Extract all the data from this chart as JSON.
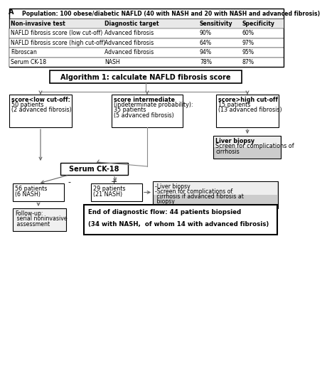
{
  "bg_color": "#ffffff",
  "table": {
    "title": "Population: 100 obese/diabetic NAFLD (40 with NASH and 20 with NASH and advanced fibrosis)",
    "headers": [
      "Non-invasive test",
      "Diagnostic target",
      "Sensitivity",
      "Specificity"
    ],
    "rows": [
      [
        "NAFLD fibrosis score (low cut-off)",
        "Advanced fibrosis",
        "90%",
        "60%"
      ],
      [
        "NAFLD fibrosis score (high cut-off)",
        "Advanced fibrosis",
        "64%",
        "97%"
      ],
      [
        "Fibroscan",
        "Advanced fibrosis",
        "94%",
        "95%"
      ],
      [
        "Serum CK-18",
        "NASH",
        "78%",
        "87%"
      ]
    ]
  },
  "algo_box": "Algorithm 1: calculate NAFLD fibrosis score",
  "low_box_lines": [
    "score<low cut-off:",
    "50 patients",
    "(2 advanced fibrosis)"
  ],
  "low_box_bold": [
    true,
    false,
    false
  ],
  "mid_box_lines": [
    "score intermediate",
    "(indeterminate probability):",
    "35 patients",
    "(5 advanced fibrosis)"
  ],
  "mid_box_bold": [
    true,
    false,
    false,
    false
  ],
  "high_box_lines": [
    "score>high cut-off",
    "15 patients",
    "(13 advanced fibrosis)"
  ],
  "high_box_bold": [
    true,
    false,
    false
  ],
  "liver_biopsy1_lines": [
    "Liver biopsy",
    "Screen for complications of",
    "cirrhosis"
  ],
  "liver_biopsy1_bold": [
    true,
    false,
    false
  ],
  "ck18_box": "Serum CK-18",
  "neg_box_lines": [
    "56 patients",
    "(6 NASH)"
  ],
  "pos_box_lines": [
    "29 patients",
    "(21 NASH)"
  ],
  "liver_biopsy2_lines": [
    "-Liver biopsy",
    "-Screen for complications of",
    " cirrhosis if advanced fibrosis at",
    " biopsy"
  ],
  "liver_biopsy2_bold": [
    false,
    false,
    false,
    false
  ],
  "followup_lines": [
    "Follow-up:",
    " serial noninvasive",
    " assessment"
  ],
  "end_lines": [
    "End of diagnostic flow: 44 patients biopsied",
    "",
    "(34 with NASH,  of whom 14 with advanced fibrosis)"
  ],
  "end_bold": [
    true,
    false,
    true
  ],
  "arrow_color": "#666666",
  "line_color": "#888888"
}
